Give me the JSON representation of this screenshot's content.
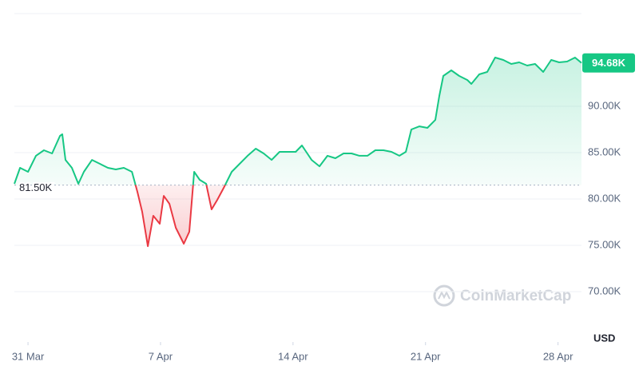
{
  "chart_data": {
    "type": "line",
    "currency": "USD",
    "watermark": "CoinMarketCap",
    "x": [
      -0.72,
      -0.42,
      0,
      0.42,
      0.84,
      1.27,
      1.69,
      1.81,
      1.98,
      2.32,
      2.66,
      2.95,
      3.38,
      3.8,
      4.22,
      4.64,
      5.06,
      5.49,
      5.78,
      6.03,
      6.33,
      6.62,
      6.96,
      7.17,
      7.47,
      7.81,
      8.23,
      8.52,
      8.78,
      9.07,
      9.41,
      9.7,
      10,
      10.34,
      10.76,
      11.18,
      11.6,
      12.03,
      12.45,
      12.87,
      13.29,
      13.71,
      14.14,
      14.47,
      14.98,
      15.4,
      15.82,
      16.24,
      16.67,
      17.09,
      17.51,
      17.93,
      18.35,
      18.78,
      19.2,
      19.62,
      19.96,
      20.25,
      20.68,
      21.1,
      21.52,
      21.73,
      21.94,
      22.36,
      22.78,
      23.21,
      23.42,
      23.84,
      24.26,
      24.68,
      25.11,
      25.53,
      25.95,
      26.37,
      26.79,
      27.22,
      27.64,
      28.06,
      28.48,
      28.9,
      29.24
    ],
    "values": [
      81.64,
      83.36,
      82.93,
      84.66,
      85.26,
      84.91,
      86.81,
      86.98,
      84.22,
      83.36,
      81.64,
      82.93,
      84.22,
      83.79,
      83.36,
      83.19,
      83.36,
      82.93,
      80.78,
      78.62,
      74.91,
      78.19,
      77.33,
      80.34,
      79.48,
      76.9,
      75.17,
      76.47,
      82.93,
      82.07,
      81.64,
      78.88,
      79.91,
      81.21,
      82.93,
      83.79,
      84.66,
      85.43,
      84.91,
      84.22,
      85.09,
      85.09,
      85.09,
      85.78,
      84.22,
      83.53,
      84.66,
      84.4,
      84.91,
      84.91,
      84.66,
      84.66,
      85.26,
      85.26,
      85.09,
      84.66,
      85.09,
      87.5,
      87.84,
      87.67,
      88.53,
      91.12,
      93.28,
      93.88,
      93.28,
      92.84,
      92.41,
      93.45,
      93.71,
      95.26,
      95,
      94.57,
      94.74,
      94.4,
      94.57,
      93.71,
      95,
      94.74,
      94.83,
      95.26,
      94.68
    ],
    "last_label": "94.68K",
    "baseline": {
      "value": 81.5,
      "label": "81.50K"
    },
    "up_color": "#16c784",
    "down_color": "#ea3943",
    "xlim": [
      -0.72,
      29.24
    ],
    "xticks": [
      {
        "value": 0,
        "label": "31 Mar"
      },
      {
        "value": 7,
        "label": "7 Apr"
      },
      {
        "value": 14,
        "label": "14 Apr"
      },
      {
        "value": 21,
        "label": "21 Apr"
      },
      {
        "value": 28,
        "label": "28 Apr"
      }
    ],
    "ylim": [
      64.57,
      100
    ],
    "yticks": [
      {
        "value": 70,
        "label": "70.00K"
      },
      {
        "value": 75,
        "label": "75.00K"
      },
      {
        "value": 80,
        "label": "80.00K"
      },
      {
        "value": 85,
        "label": "85.00K"
      },
      {
        "value": 90,
        "label": "90.00K"
      }
    ],
    "grid": true
  }
}
